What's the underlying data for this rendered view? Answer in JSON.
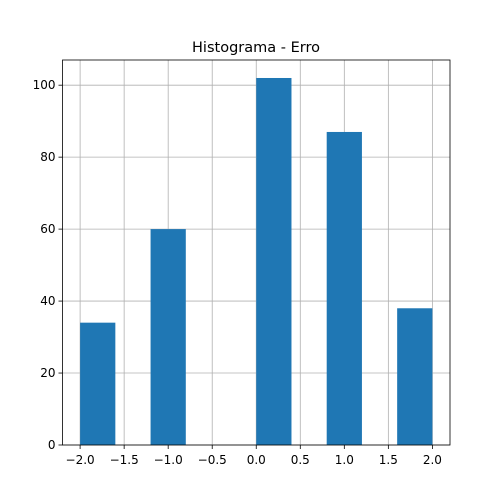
{
  "chart_data": {
    "type": "bar",
    "title": "Histograma  - Erro",
    "xlabel": "",
    "ylabel": "",
    "grid": true,
    "bar_color": "#1f77b4",
    "xlim": [
      -2.2,
      2.2
    ],
    "ylim": [
      0,
      107
    ],
    "x_ticks": [
      {
        "value": -2.0,
        "label": "−2.0"
      },
      {
        "value": -1.5,
        "label": "−1.5"
      },
      {
        "value": -1.0,
        "label": "−1.0"
      },
      {
        "value": -0.5,
        "label": "−0.5"
      },
      {
        "value": 0.0,
        "label": "0.0"
      },
      {
        "value": 0.5,
        "label": "0.5"
      },
      {
        "value": 1.0,
        "label": "1.0"
      },
      {
        "value": 1.5,
        "label": "1.5"
      },
      {
        "value": 2.0,
        "label": "2.0"
      }
    ],
    "y_ticks": [
      {
        "value": 0,
        "label": "0"
      },
      {
        "value": 20,
        "label": "20"
      },
      {
        "value": 40,
        "label": "40"
      },
      {
        "value": 60,
        "label": "60"
      },
      {
        "value": 80,
        "label": "80"
      },
      {
        "value": 100,
        "label": "100"
      }
    ],
    "bins": [
      {
        "x0": -2.0,
        "x1": -1.6,
        "count": 34
      },
      {
        "x0": -1.6,
        "x1": -1.2,
        "count": 0
      },
      {
        "x0": -1.2,
        "x1": -0.8,
        "count": 60
      },
      {
        "x0": -0.8,
        "x1": -0.4,
        "count": 0
      },
      {
        "x0": -0.4,
        "x1": 0.0,
        "count": 0
      },
      {
        "x0": 0.0,
        "x1": 0.4,
        "count": 102
      },
      {
        "x0": 0.4,
        "x1": 0.8,
        "count": 0
      },
      {
        "x0": 0.8,
        "x1": 1.2,
        "count": 87
      },
      {
        "x0": 1.2,
        "x1": 1.6,
        "count": 0
      },
      {
        "x0": 1.6,
        "x1": 2.0,
        "count": 38
      }
    ]
  }
}
